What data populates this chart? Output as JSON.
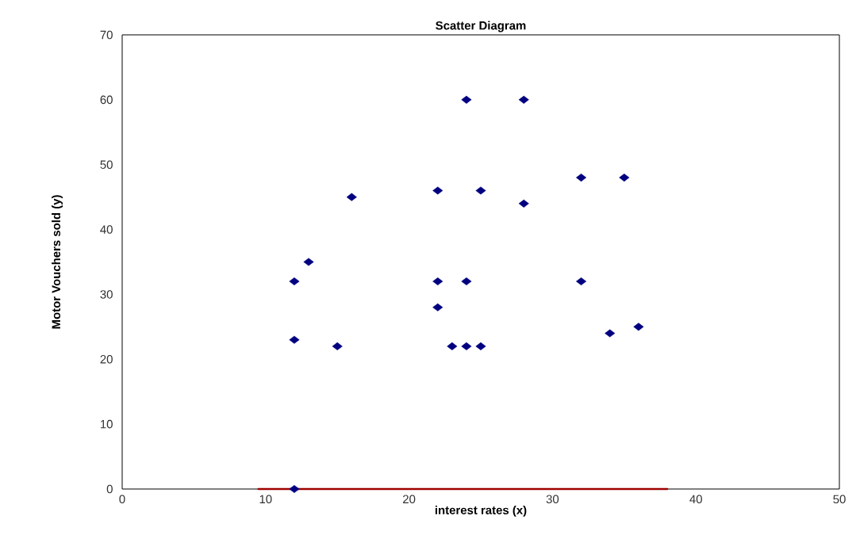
{
  "chart_data": {
    "type": "scatter",
    "title": "Scatter Diagram",
    "xlabel": "interest rates  (x)",
    "ylabel": "Motor Vouchers sold  (y)",
    "xlim": [
      0,
      50
    ],
    "ylim": [
      0,
      70
    ],
    "xticks": [
      0,
      10,
      20,
      30,
      40,
      50
    ],
    "yticks": [
      0,
      10,
      20,
      30,
      40,
      50,
      60,
      70
    ],
    "grid": false,
    "marker": "diamond",
    "series": [
      {
        "color": "#000080",
        "x": [
          12,
          12,
          12,
          13,
          15,
          16,
          22,
          22,
          22,
          23,
          24,
          25,
          24,
          24,
          25,
          28,
          28,
          32,
          32,
          35,
          34,
          36
        ],
        "values": [
          32,
          23,
          0,
          35,
          22,
          45,
          46,
          32,
          28,
          22,
          22,
          22,
          60,
          32,
          46,
          60,
          44,
          48,
          32,
          48,
          24,
          25
        ]
      },
      {
        "type": "line",
        "color": "#a00000",
        "marker": "none",
        "line_style": "solid",
        "x": [
          9.5,
          38
        ],
        "values": [
          0,
          0
        ]
      }
    ]
  }
}
